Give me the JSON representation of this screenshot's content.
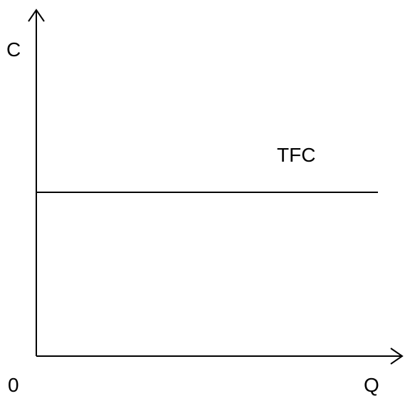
{
  "chart_data": {
    "type": "line",
    "title": "",
    "xlabel": "Q",
    "ylabel": "C",
    "origin_label": "0",
    "grid": false,
    "legend": "none",
    "series": [
      {
        "name": "TFC",
        "values": [
          1,
          1
        ]
      }
    ],
    "x": [
      0,
      1
    ],
    "ylim": [
      0,
      2
    ],
    "colors": {
      "axis": "#000000",
      "line": "#000000"
    }
  }
}
